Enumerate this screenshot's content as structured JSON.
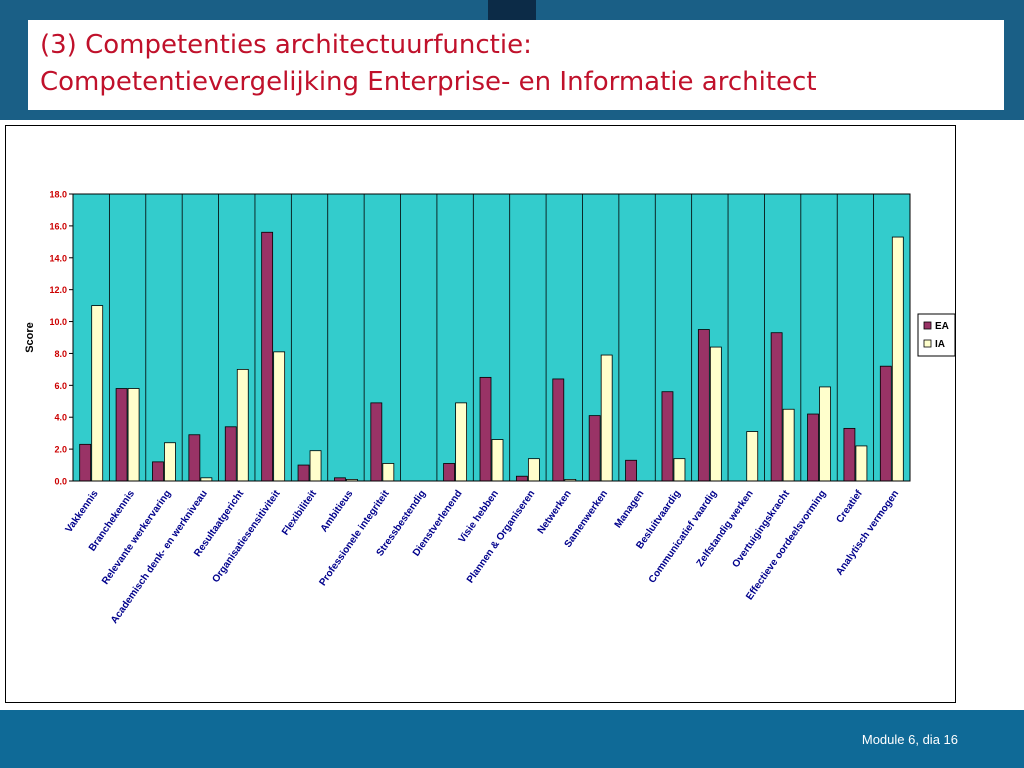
{
  "slide": {
    "title_line1": "(3) Competenties architectuurfunctie:",
    "title_line2": "Competentievergelijking Enterprise- en Informatie architect",
    "footer": "Module 6, dia 16"
  },
  "colors": {
    "header_band": "#1a5f86",
    "title_text": "#c0112b",
    "plot_background": "#33cccc",
    "ea_bar": "#993366",
    "ia_bar": "#ffffcc",
    "footer_band": "#0f6a97"
  },
  "chart_data": {
    "type": "bar",
    "title": "",
    "xlabel": "",
    "ylabel": "Score",
    "ylim": [
      0,
      18
    ],
    "yticks": [
      "0.0",
      "2.0",
      "4.0",
      "6.0",
      "8.0",
      "10.0",
      "12.0",
      "14.0",
      "16.0",
      "18.0"
    ],
    "grid": "vertical category lines",
    "legend_position": "right",
    "categories": [
      "Vakkennis",
      "Branchekennis",
      "Relevante werkervaring",
      "Academisch denk- en werkniveau",
      "Resultaatgericht",
      "Organisatiesensitiviteit",
      "Flexibiliteit",
      "Ambitieus",
      "Professionele integriteit",
      "Stressbestendig",
      "Dienstverlenend",
      "Visie hebben",
      "Plannen & Organiseren",
      "Netwerken",
      "Samenwerken",
      "Managen",
      "Besluitvaardig",
      "Communicatief vaardig",
      "Zelfstandig werken",
      "Overtuigingskracht",
      "Effectieve oordeelsvorming",
      "Creatief",
      "Analytisch vermogen"
    ],
    "series": [
      {
        "name": "EA",
        "values": [
          2.3,
          5.8,
          1.2,
          2.9,
          3.4,
          15.6,
          1.0,
          0.2,
          4.9,
          0.0,
          1.1,
          6.5,
          0.3,
          6.4,
          4.1,
          1.3,
          5.6,
          9.5,
          0.0,
          9.3,
          4.2,
          3.3,
          7.2
        ]
      },
      {
        "name": "IA",
        "values": [
          11.0,
          5.8,
          2.4,
          0.2,
          7.0,
          8.1,
          1.9,
          0.1,
          1.1,
          0.0,
          4.9,
          2.6,
          1.4,
          0.1,
          7.9,
          0.0,
          1.4,
          8.4,
          3.1,
          4.5,
          5.9,
          2.2,
          15.3
        ]
      }
    ]
  }
}
